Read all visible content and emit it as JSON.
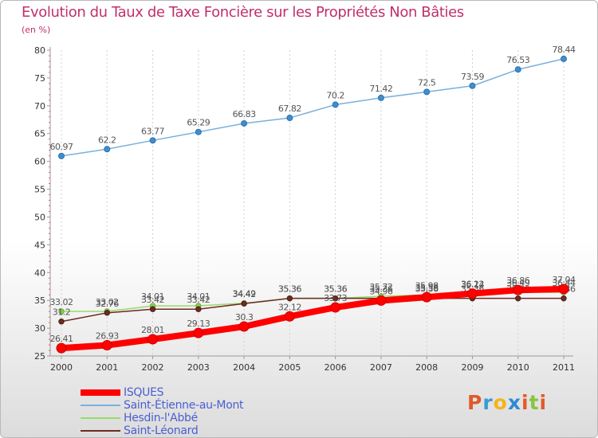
{
  "title": "Evolution du Taux de Taxe Foncière sur les Propriétés Non Bâties",
  "unit_label": "(en %)",
  "brand": {
    "logo_text": "Proxiti",
    "letters": [
      "P",
      "r",
      "o",
      "x",
      "i",
      "t",
      "i"
    ],
    "colors": [
      "#e05a2b",
      "#3a9bd5",
      "#f2b51a",
      "#2e8ad6",
      "#e05a2b",
      "#8ac43f",
      "#e05a2b"
    ]
  },
  "chart_data": {
    "type": "line",
    "title": "Evolution du Taux de Taxe Foncière sur les Propriétés Non Bâties",
    "ylabel": "(en %)",
    "xlabel": "",
    "x": [
      "2000",
      "2001",
      "2002",
      "2003",
      "2004",
      "2005",
      "2006",
      "2007",
      "2008",
      "2009",
      "2010",
      "2011"
    ],
    "ylim": [
      25,
      80
    ],
    "yticks": [
      25,
      30,
      35,
      40,
      45,
      50,
      55,
      60,
      65,
      70,
      75,
      80
    ],
    "grid": true,
    "legend_position": "bottom-left",
    "series": [
      {
        "name": "ISQUES",
        "color": "#ff0000",
        "values": [
          26.41,
          26.93,
          28.01,
          29.13,
          30.3,
          32.12,
          33.73,
          34.96,
          35.58,
          36.22,
          36.86,
          37.04
        ],
        "labels": [
          "26.41",
          "26.93",
          "28.01",
          "29.13",
          "30.3",
          "32.12",
          "33.73",
          "34.96",
          "35.58",
          "36.22",
          "36.86",
          "37.04"
        ]
      },
      {
        "name": "Saint-Étienne-au-Mont",
        "color": "#7ab0dc",
        "values": [
          60.97,
          62.2,
          63.77,
          65.29,
          66.83,
          67.82,
          70.2,
          71.42,
          72.5,
          73.59,
          76.53,
          78.44
        ],
        "labels": [
          "60.97",
          "62.2",
          "63.77",
          "65.29",
          "66.83",
          "67.82",
          "70.2",
          "71.42",
          "72.5",
          "73.59",
          "76.53",
          "78.44"
        ]
      },
      {
        "name": "Hesdin-l'Abbé",
        "color": "#99d96a",
        "values": [
          33.02,
          33.02,
          34.01,
          34.01,
          34.49,
          35.36,
          35.36,
          35.72,
          35.98,
          36.14,
          36.49,
          36.44
        ],
        "labels": [
          "33.02",
          "33.02",
          "34.01",
          "34.01",
          "34.49",
          "35.36",
          "35.36",
          "35.72",
          "35.98",
          "36.14",
          "36.49",
          "36.44"
        ]
      },
      {
        "name": "Saint-Léonard",
        "color": "#6e2a22",
        "values": [
          31.2,
          32.76,
          33.42,
          33.42,
          34.42,
          35.36,
          35.36,
          35.36,
          35.36,
          35.36,
          35.36,
          35.36
        ],
        "labels": [
          "31.2",
          "32.76",
          "33.42",
          "33.42",
          "34.42",
          "35.36",
          "35.36",
          "35.36",
          "35.36",
          "35.36",
          "35.36",
          "35.36"
        ]
      }
    ]
  }
}
